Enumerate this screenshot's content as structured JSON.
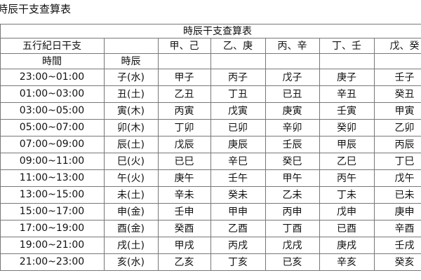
{
  "caption": "時辰干支查算表",
  "table": {
    "title": "時辰干支查算表",
    "header": [
      "五行紀日干支",
      "甲、己",
      "乙、庚",
      "丙、辛",
      "丁、壬",
      "戊、癸"
    ],
    "subheader": [
      "時間",
      "時辰"
    ],
    "rows": [
      [
        "23:00~01:00",
        "子(水)",
        "甲子",
        "丙子",
        "戊子",
        "庚子",
        "壬子"
      ],
      [
        "01:00~03:00",
        "丑(土)",
        "乙丑",
        "丁丑",
        "已丑",
        "辛丑",
        "癸丑"
      ],
      [
        "03:00~05:00",
        "寅(木)",
        "丙寅",
        "戊寅",
        "庚寅",
        "壬寅",
        "甲寅"
      ],
      [
        "05:00~07:00",
        "卯(木)",
        "丁卯",
        "已卯",
        "辛卯",
        "癸卯",
        "乙卯"
      ],
      [
        "07:00~09:00",
        "辰(土)",
        "戊辰",
        "庚辰",
        "壬辰",
        "甲辰",
        "丙辰"
      ],
      [
        "09:00~11:00",
        "巳(火)",
        "已巳",
        "辛巳",
        "癸巳",
        "乙巳",
        "丁巳"
      ],
      [
        "11:00~13:00",
        "午(火)",
        "庚午",
        "壬午",
        "甲午",
        "丙午",
        "戊午"
      ],
      [
        "13:00~15:00",
        "未(土)",
        "辛未",
        "癸未",
        "乙未",
        "丁未",
        "已未"
      ],
      [
        "15:00~17:00",
        "申(金)",
        "壬申",
        "甲申",
        "丙申",
        "戊申",
        "庚申"
      ],
      [
        "17:00~19:00",
        "酉(金)",
        "癸酉",
        "乙酉",
        "丁酉",
        "已酉",
        "辛酉"
      ],
      [
        "19:00~21:00",
        "戌(土)",
        "甲戌",
        "丙戌",
        "戊戌",
        "庚戌",
        "壬戌"
      ],
      [
        "21:00~23:00",
        "亥(水)",
        "乙亥",
        "丁亥",
        "已亥",
        "辛亥",
        "癸亥"
      ]
    ]
  }
}
